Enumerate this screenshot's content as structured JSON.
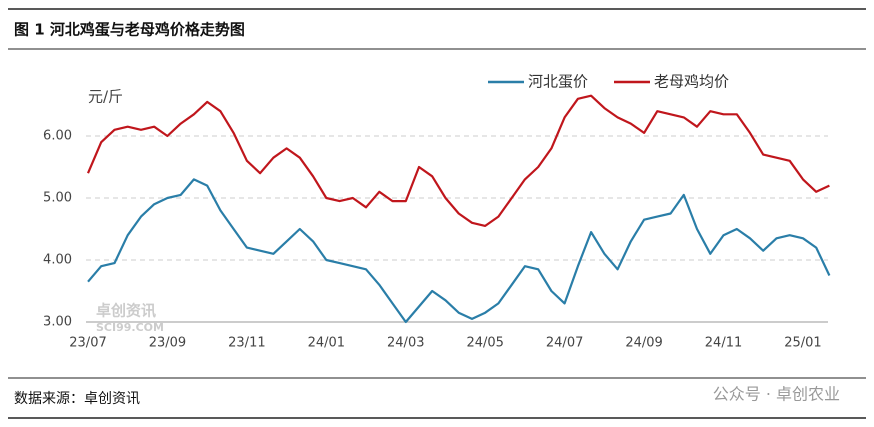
{
  "header": {
    "title": "图 1 河北鸡蛋与老母鸡价格走势图"
  },
  "chart_data": {
    "type": "line",
    "unit": "元/斤",
    "categories": [
      "23/07",
      null,
      null,
      null,
      null,
      null,
      "23/09",
      null,
      null,
      null,
      null,
      null,
      "23/11",
      null,
      null,
      null,
      null,
      null,
      "24/01",
      null,
      null,
      null,
      null,
      null,
      "24/03",
      null,
      null,
      null,
      null,
      null,
      "24/05",
      null,
      null,
      null,
      null,
      null,
      "24/07",
      null,
      null,
      null,
      null,
      null,
      "24/09",
      null,
      null,
      null,
      null,
      null,
      "24/11",
      null,
      null,
      null,
      null,
      null,
      "25/01",
      null,
      null
    ],
    "series": [
      {
        "name": "河北蛋价",
        "color": "#2a7ea8",
        "values": [
          3.65,
          3.9,
          3.95,
          4.4,
          4.7,
          4.9,
          5.0,
          5.05,
          5.3,
          5.2,
          4.8,
          4.5,
          4.2,
          4.15,
          4.1,
          4.3,
          4.5,
          4.3,
          4.0,
          3.95,
          3.9,
          3.85,
          3.6,
          3.3,
          3.0,
          3.25,
          3.5,
          3.35,
          3.15,
          3.05,
          3.15,
          3.3,
          3.6,
          3.9,
          3.85,
          3.5,
          3.3,
          3.9,
          4.45,
          4.1,
          3.85,
          4.3,
          4.65,
          4.7,
          4.75,
          5.05,
          4.5,
          4.1,
          4.4,
          4.5,
          4.35,
          4.15,
          4.35,
          4.4,
          4.35,
          4.2,
          3.75
        ]
      },
      {
        "name": "老母鸡均价",
        "color": "#c0161c",
        "values": [
          5.4,
          5.9,
          6.1,
          6.15,
          6.1,
          6.15,
          6.0,
          6.2,
          6.35,
          6.55,
          6.4,
          6.05,
          5.6,
          5.4,
          5.65,
          5.8,
          5.65,
          5.35,
          5.0,
          4.95,
          5.0,
          4.85,
          5.1,
          4.95,
          4.95,
          5.5,
          5.35,
          5.0,
          4.75,
          4.6,
          4.55,
          4.7,
          5.0,
          5.3,
          5.5,
          5.8,
          6.3,
          6.6,
          6.65,
          6.45,
          6.3,
          6.2,
          6.05,
          6.4,
          6.35,
          6.3,
          6.15,
          6.4,
          6.35,
          6.35,
          6.05,
          5.7,
          5.65,
          5.6,
          5.3,
          5.1,
          5.2
        ]
      }
    ],
    "ylim": [
      3,
      7
    ],
    "yticks": [
      {
        "value": 3,
        "label": "3.00"
      },
      {
        "value": 4,
        "label": "4.00"
      },
      {
        "value": 5,
        "label": "5.00"
      },
      {
        "value": 6,
        "label": "6.00"
      }
    ],
    "grid": true
  },
  "watermark": {
    "name": "卓创资讯",
    "site": "SCI99.COM"
  },
  "footer": {
    "source": "数据来源：卓创资讯",
    "wechat": "公众号 · 卓创农业"
  }
}
